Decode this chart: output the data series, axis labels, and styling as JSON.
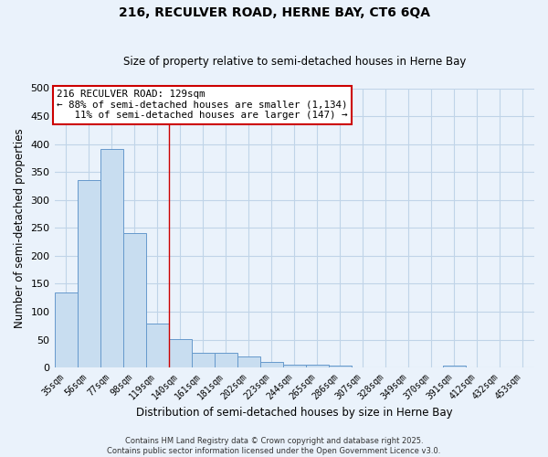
{
  "title": "216, RECULVER ROAD, HERNE BAY, CT6 6QA",
  "subtitle": "Size of property relative to semi-detached houses in Herne Bay",
  "xlabel": "Distribution of semi-detached houses by size in Herne Bay",
  "ylabel": "Number of semi-detached properties",
  "bar_labels": [
    "35sqm",
    "56sqm",
    "77sqm",
    "98sqm",
    "119sqm",
    "140sqm",
    "161sqm",
    "181sqm",
    "202sqm",
    "223sqm",
    "244sqm",
    "265sqm",
    "286sqm",
    "307sqm",
    "328sqm",
    "349sqm",
    "370sqm",
    "391sqm",
    "412sqm",
    "432sqm",
    "453sqm"
  ],
  "bar_values": [
    134,
    335,
    392,
    241,
    78,
    51,
    27,
    27,
    19,
    10,
    5,
    5,
    4,
    0,
    0,
    0,
    0,
    3,
    0,
    0,
    0
  ],
  "bar_color": "#c8ddf0",
  "bar_edge_color": "#6699cc",
  "grid_color": "#c0d4e8",
  "background_color": "#eaf2fb",
  "property_line_x": 4.5,
  "property_line_color": "#cc0000",
  "annotation_text": "216 RECULVER ROAD: 129sqm\n← 88% of semi-detached houses are smaller (1,134)\n   11% of semi-detached houses are larger (147) →",
  "annotation_box_color": "#ffffff",
  "annotation_box_edge": "#cc0000",
  "footer": "Contains HM Land Registry data © Crown copyright and database right 2025.\nContains public sector information licensed under the Open Government Licence v3.0.",
  "ylim": [
    0,
    500
  ],
  "yticks": [
    0,
    50,
    100,
    150,
    200,
    250,
    300,
    350,
    400,
    450,
    500
  ]
}
